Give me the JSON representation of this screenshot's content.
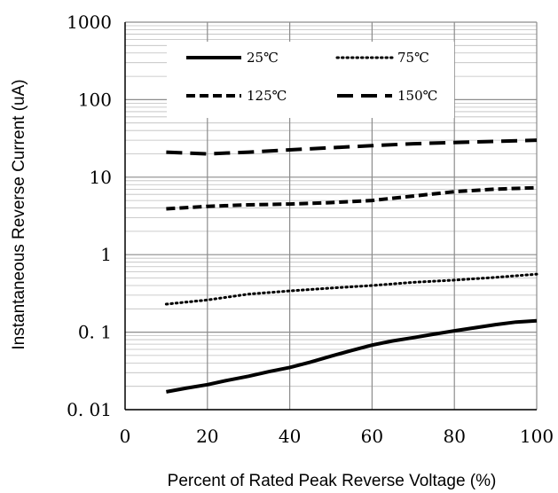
{
  "chart_data": {
    "type": "line",
    "title": "",
    "xlabel": "Percent of  Rated Peak Reverse Voltage (%)",
    "ylabel": "Instantaneous Reverse Current (uA)",
    "x_scale": "linear",
    "y_scale": "log",
    "xlim": [
      0,
      100
    ],
    "ylim": [
      0.01,
      1000
    ],
    "x_ticks": [
      0,
      20,
      40,
      60,
      80,
      100
    ],
    "x_tick_labels": [
      "0",
      "20",
      "40",
      "60",
      "80",
      "100"
    ],
    "y_ticks": [
      0.01,
      0.1,
      1,
      10,
      100,
      1000
    ],
    "y_tick_labels": [
      "0. 01",
      "0. 1",
      "1",
      "10",
      "100",
      "1000"
    ],
    "grid": true,
    "legend_position": "top",
    "series": [
      {
        "name": "25℃",
        "style": "solid",
        "color": "#000000",
        "x": [
          10,
          15,
          20,
          25,
          30,
          35,
          40,
          45,
          50,
          55,
          60,
          65,
          70,
          75,
          80,
          85,
          90,
          95,
          100
        ],
        "y": [
          0.017,
          0.019,
          0.021,
          0.024,
          0.027,
          0.031,
          0.035,
          0.041,
          0.049,
          0.058,
          0.068,
          0.077,
          0.085,
          0.094,
          0.104,
          0.114,
          0.125,
          0.135,
          0.14
        ]
      },
      {
        "name": "75℃",
        "style": "dotted",
        "color": "#000000",
        "x": [
          10,
          20,
          30,
          40,
          50,
          60,
          70,
          80,
          90,
          100
        ],
        "y": [
          0.23,
          0.26,
          0.31,
          0.34,
          0.37,
          0.4,
          0.44,
          0.47,
          0.51,
          0.56
        ]
      },
      {
        "name": "125℃",
        "style": "short-dash",
        "color": "#000000",
        "x": [
          10,
          20,
          30,
          40,
          50,
          60,
          70,
          80,
          90,
          100
        ],
        "y": [
          3.9,
          4.2,
          4.4,
          4.5,
          4.7,
          5.0,
          5.7,
          6.5,
          7.0,
          7.3
        ]
      },
      {
        "name": "150℃",
        "style": "long-dash",
        "color": "#000000",
        "x": [
          10,
          20,
          30,
          40,
          50,
          60,
          70,
          80,
          90,
          100
        ],
        "y": [
          21,
          20,
          21,
          22.5,
          24,
          25.5,
          27,
          28,
          29,
          30
        ]
      }
    ]
  }
}
